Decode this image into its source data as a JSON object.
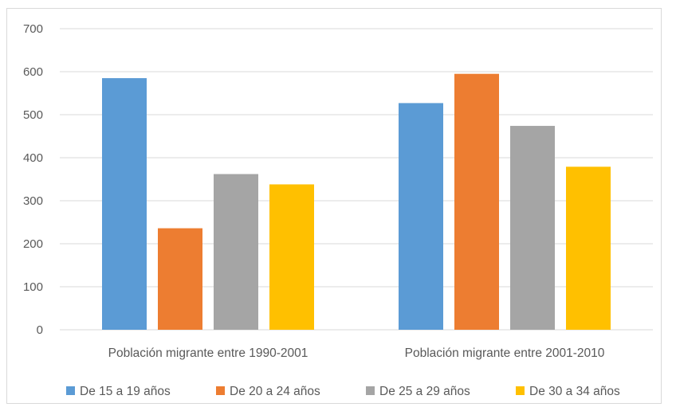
{
  "chart_data": {
    "type": "bar",
    "categories": [
      "Población migrante entre 1990-2001",
      "Población migrante entre 2001-2010"
    ],
    "series": [
      {
        "name": "De 15 a 19 años",
        "color": "#5b9bd5",
        "values": [
          585,
          527
        ]
      },
      {
        "name": "De 20 a 24 años",
        "color": "#ed7d31",
        "values": [
          236,
          595
        ]
      },
      {
        "name": "De 25 a 29 años",
        "color": "#a5a5a5",
        "values": [
          362,
          474
        ]
      },
      {
        "name": "De 30 a 34 años",
        "color": "#ffc000",
        "values": [
          338,
          379
        ]
      }
    ],
    "ylim": [
      0,
      700
    ],
    "yticks": [
      0,
      100,
      200,
      300,
      400,
      500,
      600,
      700
    ],
    "grid": true,
    "legend_position": "bottom"
  }
}
